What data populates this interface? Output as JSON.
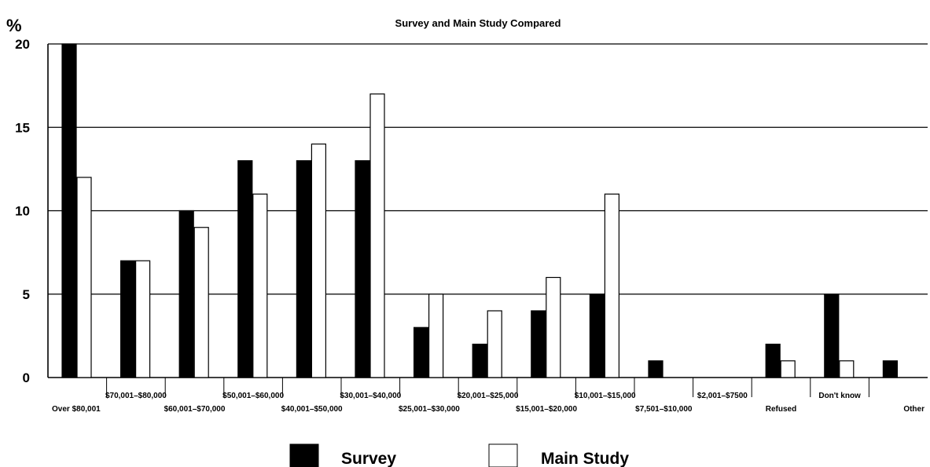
{
  "chart_data": {
    "type": "bar",
    "title": "Survey and Main Study Compared",
    "ylabel": "%",
    "xlabel": "",
    "ylim": [
      0,
      20
    ],
    "yticks": [
      0,
      5,
      10,
      15,
      20
    ],
    "grid": true,
    "legend_position": "bottom",
    "categories": [
      "Over $80,001",
      "$70,001–$80,000",
      "$60,001–$70,000",
      "$50,001–$60,000",
      "$40,001–$50,000",
      "$30,001–$40,000",
      "$25,001–$30,000",
      "$20,001–$25,000",
      "$15,001–$20,000",
      "$10,001–$15,000",
      "$7,501–$10,000",
      "$2,001–$7500",
      "Refused",
      "Don't know",
      "Other"
    ],
    "series": [
      {
        "name": "Survey",
        "color": "#000000",
        "values": [
          20,
          7,
          10,
          13,
          13,
          13,
          3,
          2,
          4,
          5,
          1,
          0,
          2,
          5,
          1
        ]
      },
      {
        "name": "Main Study",
        "color": "#ffffff",
        "values": [
          12,
          7,
          9,
          11,
          14,
          17,
          5,
          4,
          6,
          11,
          0,
          0,
          1,
          1,
          0
        ]
      }
    ]
  }
}
